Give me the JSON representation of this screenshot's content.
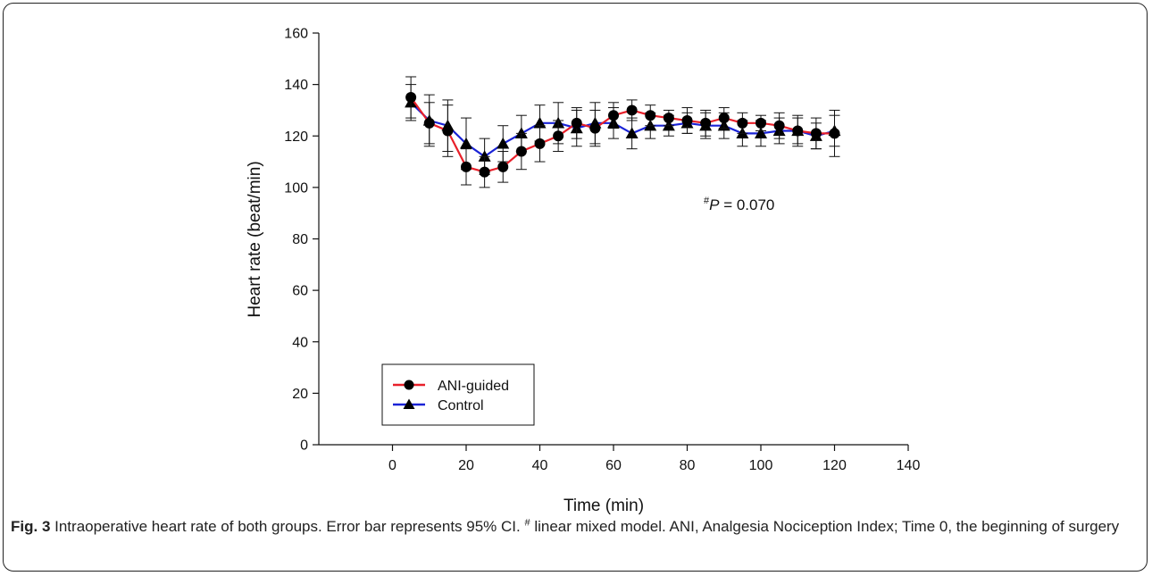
{
  "caption": {
    "label": "Fig. 3",
    "text_1": " Intraoperative heart rate of both groups. Error bar represents 95% CI. ",
    "sup": "#",
    "text_2": " linear mixed model. ANI, Analgesia Nociception Index; Time 0, the beginning of surgery"
  },
  "annotation": {
    "sup": "#",
    "italic": "P",
    "rest": " = 0.070"
  },
  "chart_data": {
    "type": "line",
    "xlabel": "Time (min)",
    "ylabel": "Heart rate (beat/min)",
    "xlim": [
      -20,
      140
    ],
    "ylim": [
      0,
      160
    ],
    "xticks": [
      0,
      20,
      40,
      60,
      80,
      100,
      120,
      140
    ],
    "yticks": [
      0,
      20,
      40,
      60,
      80,
      100,
      120,
      140,
      160
    ],
    "grid": false,
    "legend_position": "bottom-left",
    "x": [
      5,
      10,
      15,
      20,
      25,
      30,
      35,
      40,
      45,
      50,
      55,
      60,
      65,
      70,
      75,
      80,
      85,
      90,
      95,
      100,
      105,
      110,
      115,
      120
    ],
    "series": [
      {
        "name": "ANI-guided",
        "color": "#e8202a",
        "marker": "circle",
        "values": [
          135,
          125,
          122,
          108,
          106,
          108,
          114,
          117,
          120,
          125,
          123,
          128,
          130,
          128,
          127,
          126,
          125,
          127,
          125,
          125,
          124,
          122,
          121,
          121
        ],
        "err": [
          8,
          8,
          10,
          7,
          6,
          6,
          7,
          7,
          6,
          6,
          7,
          5,
          4,
          4,
          3,
          5,
          5,
          4,
          4,
          3,
          5,
          6,
          6,
          9
        ]
      },
      {
        "name": "Control",
        "color": "#1a23d6",
        "marker": "triangle",
        "values": [
          133,
          126,
          124,
          117,
          112,
          117,
          121,
          125,
          125,
          123,
          125,
          125,
          121,
          124,
          124,
          125,
          124,
          124,
          121,
          121,
          122,
          122,
          120,
          122
        ],
        "err": [
          7,
          10,
          10,
          10,
          7,
          7,
          7,
          7,
          8,
          7,
          8,
          6,
          6,
          5,
          4,
          4,
          5,
          5,
          5,
          5,
          5,
          5,
          5,
          6
        ]
      }
    ]
  }
}
